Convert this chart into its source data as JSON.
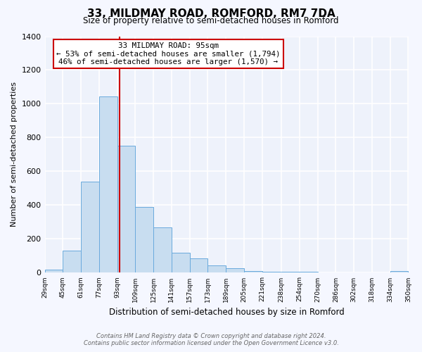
{
  "title": "33, MILDMAY ROAD, ROMFORD, RM7 7DA",
  "subtitle": "Size of property relative to semi-detached houses in Romford",
  "xlabel": "Distribution of semi-detached houses by size in Romford",
  "ylabel": "Number of semi-detached properties",
  "bar_color": "#c8ddf0",
  "bar_edge_color": "#6aaadd",
  "plot_bg_color": "#eef2fb",
  "fig_bg_color": "#f5f7ff",
  "grid_color": "#ffffff",
  "bin_edges": [
    29,
    45,
    61,
    77,
    93,
    109,
    125,
    141,
    157,
    173,
    189,
    205,
    221,
    238,
    254,
    270,
    286,
    302,
    318,
    334,
    350
  ],
  "bin_labels": [
    "29sqm",
    "45sqm",
    "61sqm",
    "77sqm",
    "93sqm",
    "109sqm",
    "125sqm",
    "141sqm",
    "157sqm",
    "173sqm",
    "189sqm",
    "205sqm",
    "221sqm",
    "238sqm",
    "254sqm",
    "270sqm",
    "286sqm",
    "302sqm",
    "318sqm",
    "334sqm",
    "350sqm"
  ],
  "counts": [
    20,
    130,
    540,
    1045,
    750,
    390,
    270,
    120,
    85,
    42,
    28,
    10,
    7,
    5,
    7,
    0,
    0,
    0,
    0,
    10
  ],
  "property_size": 95,
  "vline_color": "#cc0000",
  "annotation_line1": "33 MILDMAY ROAD: 95sqm",
  "annotation_line2": "← 53% of semi-detached houses are smaller (1,794)",
  "annotation_line3": "46% of semi-detached houses are larger (1,570) →",
  "annotation_box_edge_color": "#cc0000",
  "ylim": [
    0,
    1400
  ],
  "yticks": [
    0,
    200,
    400,
    600,
    800,
    1000,
    1200,
    1400
  ],
  "footer_line1": "Contains HM Land Registry data © Crown copyright and database right 2024.",
  "footer_line2": "Contains public sector information licensed under the Open Government Licence v3.0."
}
